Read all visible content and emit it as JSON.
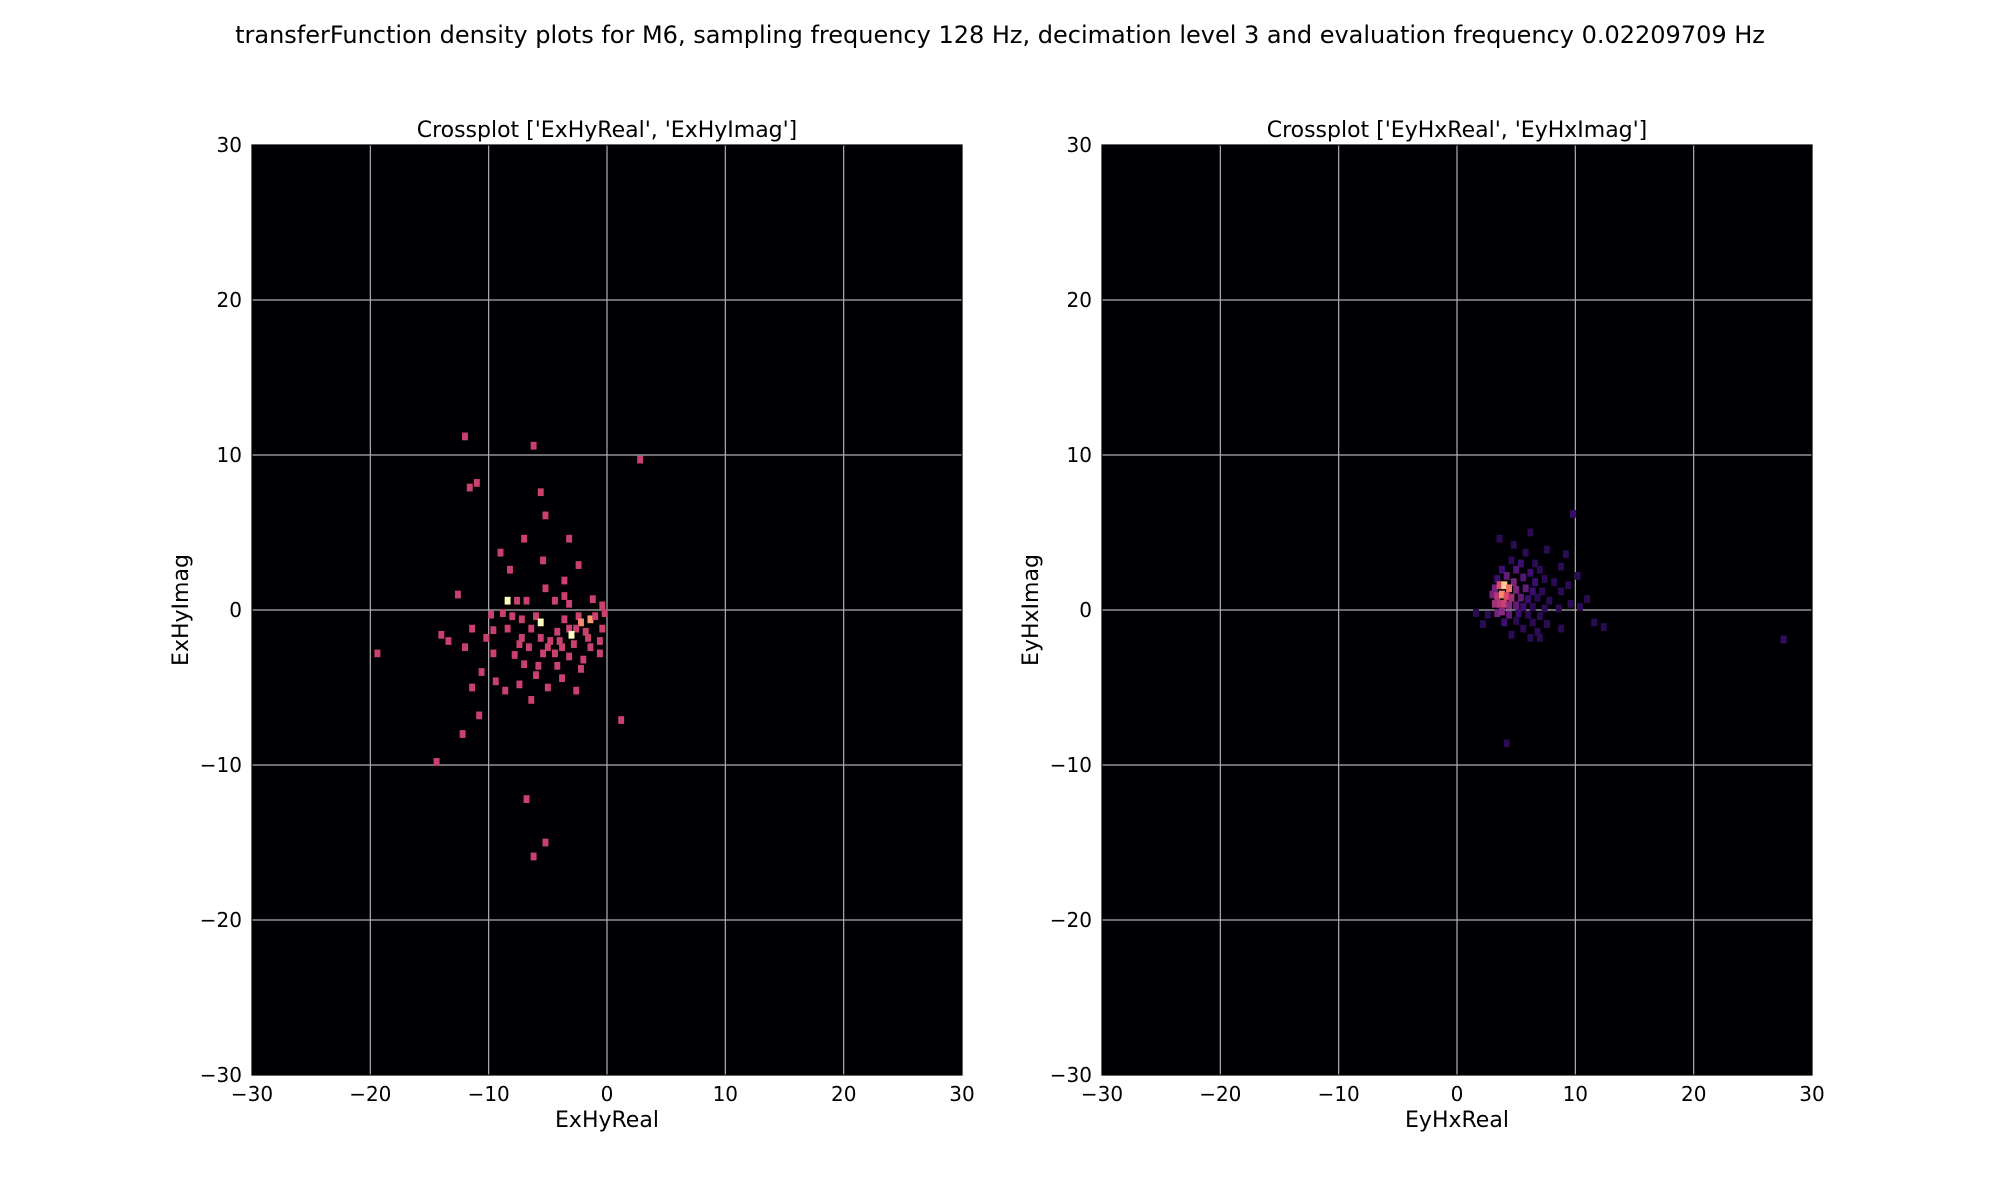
{
  "figure_title": "transferFunction density plots for M6, sampling frequency 128 Hz, decimation level 3 and evaluation frequency 0.02209709 Hz",
  "colormap": [
    "#000004",
    "#3b0f70",
    "#8c2981",
    "#de4968",
    "#fe9f6d",
    "#fcfdbf"
  ],
  "background_color": "#000004",
  "grid_color": "#b0b0b0",
  "chart_data": [
    {
      "type": "heatmap",
      "title": "Crossplot ['ExHyReal', 'ExHyImag']",
      "xlabel": "ExHyReal",
      "ylabel": "ExHyImag",
      "xlim": [
        -30,
        30
      ],
      "ylim": [
        -30,
        30
      ],
      "xticks": [
        "−30",
        "−20",
        "−10",
        "0",
        "10",
        "20",
        "30"
      ],
      "yticks": [
        "30",
        "20",
        "10",
        "0",
        "−10",
        "−20",
        "−30"
      ],
      "grid": true,
      "bin_size": 0.5,
      "points": [
        [
          -12,
          11.2,
          0.55
        ],
        [
          -6.2,
          10.6,
          0.55
        ],
        [
          2.8,
          9.7,
          0.55
        ],
        [
          -11.6,
          7.9,
          0.55
        ],
        [
          -11,
          8.2,
          0.55
        ],
        [
          -5.6,
          7.6,
          0.55
        ],
        [
          -5.2,
          6.1,
          0.55
        ],
        [
          -7,
          4.6,
          0.55
        ],
        [
          -3.2,
          4.6,
          0.55
        ],
        [
          -9,
          3.7,
          0.55
        ],
        [
          -5.4,
          3.2,
          0.55
        ],
        [
          -8.2,
          2.6,
          0.55
        ],
        [
          -2.4,
          2.9,
          0.55
        ],
        [
          -3.6,
          1.9,
          0.55
        ],
        [
          -5.2,
          1.4,
          0.55
        ],
        [
          -12.6,
          1,
          0.55
        ],
        [
          -8.4,
          0.6,
          1
        ],
        [
          -7.6,
          0.6,
          0.55
        ],
        [
          -6.8,
          0.6,
          0.55
        ],
        [
          -4.4,
          0.6,
          0.55
        ],
        [
          -3.6,
          0.9,
          0.55
        ],
        [
          -3.2,
          0.4,
          0.55
        ],
        [
          -1.2,
          0.7,
          0.55
        ],
        [
          -0.4,
          0.3,
          0.55
        ],
        [
          -9.8,
          -0.3,
          0.55
        ],
        [
          -8.8,
          -0.2,
          0.55
        ],
        [
          -8,
          -0.4,
          0.55
        ],
        [
          -7.2,
          -0.6,
          0.55
        ],
        [
          -6,
          -0.4,
          0.55
        ],
        [
          -5.6,
          -0.8,
          1
        ],
        [
          -3.6,
          -0.6,
          0.55
        ],
        [
          -2.4,
          -0.4,
          0.55
        ],
        [
          -2.2,
          -0.8,
          0.75
        ],
        [
          -1.4,
          -0.6,
          0.8
        ],
        [
          -1,
          -0.4,
          0.55
        ],
        [
          -0.2,
          -0.2,
          0.55
        ],
        [
          -11.4,
          -1.2,
          0.55
        ],
        [
          -9.6,
          -1.3,
          0.55
        ],
        [
          -8.4,
          -1.2,
          0.55
        ],
        [
          -6.4,
          -1.2,
          0.55
        ],
        [
          -4.2,
          -1.4,
          0.55
        ],
        [
          -3.2,
          -1.2,
          0.55
        ],
        [
          -2.6,
          -1.2,
          0.55
        ],
        [
          -1.8,
          -1.4,
          0.55
        ],
        [
          -0.4,
          -1.2,
          0.55
        ],
        [
          -14,
          -1.6,
          0.55
        ],
        [
          -13.4,
          -2,
          0.55
        ],
        [
          -10.2,
          -1.8,
          0.55
        ],
        [
          -7.2,
          -1.8,
          0.55
        ],
        [
          -5.6,
          -1.8,
          0.55
        ],
        [
          -4.8,
          -2,
          0.55
        ],
        [
          -4,
          -2,
          0.55
        ],
        [
          -3,
          -1.6,
          1
        ],
        [
          -1.6,
          -1.8,
          0.55
        ],
        [
          -0.6,
          -2,
          0.55
        ],
        [
          -12,
          -2.4,
          0.55
        ],
        [
          -7.4,
          -2.2,
          0.55
        ],
        [
          -6.6,
          -2.4,
          0.55
        ],
        [
          -5,
          -2.4,
          0.55
        ],
        [
          -3.8,
          -2.4,
          0.55
        ],
        [
          -2.8,
          -2.2,
          0.55
        ],
        [
          -1.4,
          -2.4,
          0.55
        ],
        [
          -19.4,
          -2.8,
          0.55
        ],
        [
          -9.6,
          -2.8,
          0.55
        ],
        [
          -7.8,
          -2.9,
          0.55
        ],
        [
          -5.4,
          -2.8,
          0.55
        ],
        [
          -4.4,
          -2.8,
          0.55
        ],
        [
          -3.2,
          -3,
          0.55
        ],
        [
          -2,
          -3.2,
          0.55
        ],
        [
          -0.6,
          -2.8,
          0.55
        ],
        [
          -7,
          -3.5,
          0.55
        ],
        [
          -5.8,
          -3.6,
          0.55
        ],
        [
          -4.2,
          -3.6,
          0.55
        ],
        [
          -2.2,
          -3.8,
          0.55
        ],
        [
          -10.6,
          -4,
          0.55
        ],
        [
          -6,
          -4.2,
          0.55
        ],
        [
          -3.8,
          -4.4,
          0.55
        ],
        [
          -9.4,
          -4.6,
          0.55
        ],
        [
          -7.4,
          -4.8,
          0.55
        ],
        [
          -5,
          -5,
          0.55
        ],
        [
          -2.6,
          -5.2,
          0.55
        ],
        [
          -11.4,
          -5,
          0.55
        ],
        [
          -8.6,
          -5.2,
          0.55
        ],
        [
          -6.4,
          -5.8,
          0.55
        ],
        [
          -10.8,
          -6.8,
          0.55
        ],
        [
          1.2,
          -7.1,
          0.55
        ],
        [
          -12.2,
          -8,
          0.55
        ],
        [
          -14.4,
          -9.8,
          0.55
        ],
        [
          -6.8,
          -12.2,
          0.55
        ],
        [
          -5.2,
          -15,
          0.55
        ],
        [
          -6.2,
          -15.9,
          0.55
        ]
      ]
    },
    {
      "type": "heatmap",
      "title": "Crossplot ['EyHxReal', 'EyHxImag']",
      "xlabel": "EyHxReal",
      "ylabel": "EyHxImag",
      "xlim": [
        -30,
        30
      ],
      "ylim": [
        -30,
        30
      ],
      "xticks": [
        "−30",
        "−20",
        "−10",
        "0",
        "10",
        "20",
        "30"
      ],
      "yticks": [
        "30",
        "20",
        "10",
        "0",
        "−10",
        "−20",
        "−30"
      ],
      "grid": true,
      "bin_size": 0.5,
      "points": [
        [
          9.8,
          6.2,
          0.18
        ],
        [
          6.2,
          5,
          0.15
        ],
        [
          3.6,
          4.6,
          0.15
        ],
        [
          4.8,
          4.2,
          0.15
        ],
        [
          5.8,
          3.7,
          0.15
        ],
        [
          7.6,
          3.9,
          0.15
        ],
        [
          9.2,
          3.6,
          0.15
        ],
        [
          4.6,
          3.2,
          0.15
        ],
        [
          5.4,
          3,
          0.2
        ],
        [
          6.6,
          3,
          0.15
        ],
        [
          8.8,
          2.8,
          0.15
        ],
        [
          3.8,
          2.6,
          0.2
        ],
        [
          5,
          2.6,
          0.25
        ],
        [
          6.2,
          2.4,
          0.2
        ],
        [
          7,
          2.6,
          0.15
        ],
        [
          10.2,
          2.2,
          0.15
        ],
        [
          3.4,
          2,
          0.2
        ],
        [
          4.2,
          2.2,
          0.3
        ],
        [
          4.8,
          1.8,
          0.35
        ],
        [
          5.6,
          2.1,
          0.25
        ],
        [
          6.6,
          1.8,
          0.2
        ],
        [
          7.4,
          2,
          0.15
        ],
        [
          8.2,
          1.8,
          0.15
        ],
        [
          9.4,
          1.6,
          0.15
        ],
        [
          3.2,
          1.4,
          0.35
        ],
        [
          3.6,
          1.6,
          0.6
        ],
        [
          4,
          1.6,
          0.9
        ],
        [
          4.4,
          1.4,
          0.7
        ],
        [
          5,
          1.3,
          0.35
        ],
        [
          5.8,
          1.4,
          0.3
        ],
        [
          6.4,
          1.2,
          0.2
        ],
        [
          7.2,
          1.2,
          0.15
        ],
        [
          8.8,
          1.2,
          0.15
        ],
        [
          3,
          1,
          0.35
        ],
        [
          3.4,
          0.9,
          0.5
        ],
        [
          3.8,
          1,
          0.75
        ],
        [
          4.2,
          0.9,
          0.6
        ],
        [
          4.6,
          0.8,
          0.45
        ],
        [
          5.4,
          0.8,
          0.3
        ],
        [
          6,
          0.7,
          0.2
        ],
        [
          6.8,
          0.8,
          0.15
        ],
        [
          7.8,
          0.6,
          0.15
        ],
        [
          9.6,
          0.4,
          0.15
        ],
        [
          3.2,
          0.4,
          0.45
        ],
        [
          3.6,
          0.4,
          0.5
        ],
        [
          4,
          0.4,
          0.55
        ],
        [
          4.4,
          0.3,
          0.4
        ],
        [
          5,
          0.3,
          0.3
        ],
        [
          5.6,
          0.2,
          0.2
        ],
        [
          6.4,
          0.2,
          0.15
        ],
        [
          7.4,
          0.1,
          0.15
        ],
        [
          8.6,
          0.1,
          0.15
        ],
        [
          10.4,
          0.2,
          0.15
        ],
        [
          11,
          0.7,
          0.15
        ],
        [
          3.4,
          -0.2,
          0.35
        ],
        [
          3.8,
          -0.1,
          0.4
        ],
        [
          4.4,
          -0.3,
          0.3
        ],
        [
          5.2,
          -0.2,
          0.2
        ],
        [
          6,
          -0.3,
          0.15
        ],
        [
          7,
          -0.4,
          0.15
        ],
        [
          1.6,
          -0.2,
          0.15
        ],
        [
          2.6,
          -0.3,
          0.15
        ],
        [
          4,
          -0.8,
          0.2
        ],
        [
          5,
          -0.7,
          0.15
        ],
        [
          6.4,
          -0.8,
          0.15
        ],
        [
          7.6,
          -0.9,
          0.15
        ],
        [
          11.6,
          -0.8,
          0.15
        ],
        [
          2.2,
          -0.9,
          0.15
        ],
        [
          5.6,
          -1.2,
          0.15
        ],
        [
          6.8,
          -1.4,
          0.15
        ],
        [
          8.8,
          -1.2,
          0.15
        ],
        [
          12.4,
          -1.1,
          0.15
        ],
        [
          4.6,
          -1.6,
          0.15
        ],
        [
          6.2,
          -1.8,
          0.15
        ],
        [
          7,
          -1.8,
          0.15
        ],
        [
          27.6,
          -1.9,
          0.18
        ],
        [
          4.2,
          -8.6,
          0.15
        ]
      ]
    }
  ]
}
